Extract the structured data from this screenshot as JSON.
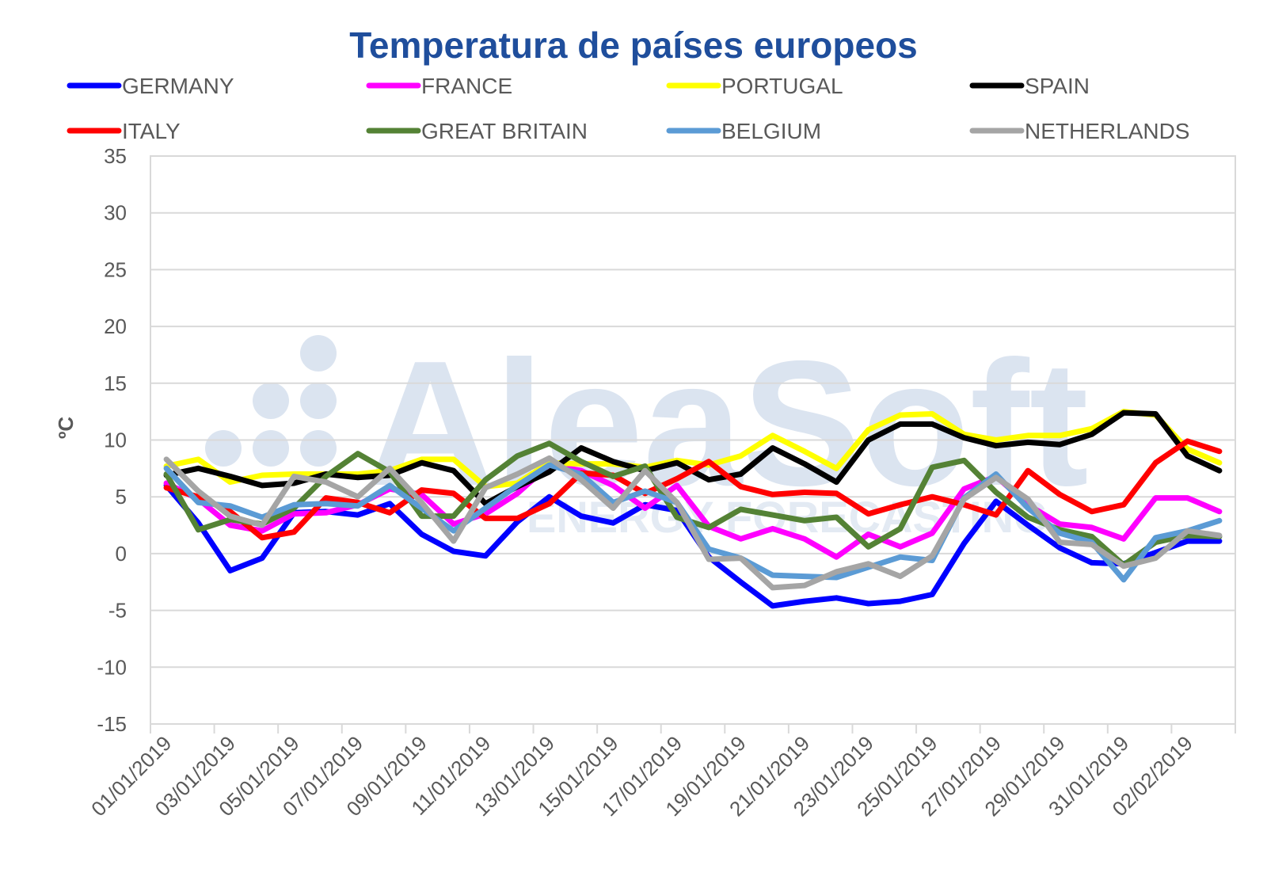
{
  "watermark": {
    "brand": "AleaSoft",
    "tagline": "ENERGY FORECASTING"
  },
  "chart_data": {
    "type": "line",
    "title": "Temperatura de países europeos",
    "ylabel": "ºC",
    "xlabel": "",
    "ylim": [
      -15,
      35
    ],
    "yticks": [
      35,
      30,
      25,
      20,
      15,
      10,
      5,
      0,
      -5,
      -10,
      -15
    ],
    "grid": true,
    "legend": "top",
    "x": [
      "01/01/2019",
      "02/01/2019",
      "03/01/2019",
      "04/01/2019",
      "05/01/2019",
      "06/01/2019",
      "07/01/2019",
      "08/01/2019",
      "09/01/2019",
      "10/01/2019",
      "11/01/2019",
      "12/01/2019",
      "13/01/2019",
      "14/01/2019",
      "15/01/2019",
      "16/01/2019",
      "17/01/2019",
      "18/01/2019",
      "19/01/2019",
      "20/01/2019",
      "21/01/2019",
      "22/01/2019",
      "23/01/2019",
      "24/01/2019",
      "25/01/2019",
      "26/01/2019",
      "27/01/2019",
      "28/01/2019",
      "29/01/2019",
      "30/01/2019",
      "31/01/2019",
      "01/02/2019",
      "02/02/2019",
      "03/02/2019"
    ],
    "xtick_labels": [
      "01/01/2019",
      "03/01/2019",
      "05/01/2019",
      "07/01/2019",
      "09/01/2019",
      "11/01/2019",
      "13/01/2019",
      "15/01/2019",
      "17/01/2019",
      "19/01/2019",
      "21/01/2019",
      "23/01/2019",
      "25/01/2019",
      "27/01/2019",
      "29/01/2019",
      "31/01/2019",
      "02/02/2019"
    ],
    "series": [
      {
        "name": "GERMANY",
        "color": "#0000ff",
        "values": [
          6.0,
          2.7,
          -1.5,
          -0.4,
          3.6,
          3.7,
          3.4,
          4.4,
          1.7,
          0.2,
          -0.2,
          2.8,
          5.0,
          3.3,
          2.7,
          4.3,
          3.8,
          -0.3,
          -2.5,
          -4.6,
          -4.2,
          -3.9,
          -4.4,
          -4.2,
          -3.6,
          0.9,
          4.6,
          2.5,
          0.5,
          -0.8,
          -0.9,
          0.1,
          1.1,
          1.1
        ]
      },
      {
        "name": "FRANCE",
        "color": "#ff00ff",
        "values": [
          6.2,
          4.8,
          2.5,
          2.0,
          3.5,
          3.6,
          4.3,
          5.7,
          5.2,
          2.6,
          3.5,
          5.3,
          7.8,
          7.3,
          6.0,
          4.0,
          6.0,
          2.4,
          1.3,
          2.2,
          1.3,
          -0.3,
          1.7,
          0.6,
          1.8,
          5.7,
          6.8,
          4.3,
          2.6,
          2.3,
          1.3,
          4.9,
          4.9,
          3.7
        ]
      },
      {
        "name": "PORTUGAL",
        "color": "#ffff00",
        "values": [
          7.7,
          8.3,
          6.3,
          6.9,
          7.0,
          7.0,
          7.0,
          7.3,
          8.3,
          8.3,
          5.9,
          6.2,
          8.0,
          7.9,
          7.9,
          7.6,
          8.2,
          7.8,
          8.6,
          10.4,
          9.0,
          7.5,
          10.9,
          12.2,
          12.3,
          10.5,
          10.0,
          10.4,
          10.4,
          11.0,
          12.5,
          12.2,
          9.2,
          8.0
        ]
      },
      {
        "name": "SPAIN",
        "color": "#000000",
        "values": [
          6.9,
          7.5,
          6.8,
          6.0,
          6.2,
          7.0,
          6.7,
          6.9,
          8.0,
          7.3,
          4.4,
          5.9,
          7.2,
          9.3,
          8.1,
          7.3,
          8.0,
          6.5,
          7.0,
          9.3,
          7.9,
          6.3,
          10.0,
          11.4,
          11.4,
          10.2,
          9.5,
          9.8,
          9.6,
          10.5,
          12.4,
          12.3,
          8.6,
          7.3
        ]
      },
      {
        "name": "ITALY",
        "color": "#ff0000",
        "values": [
          5.8,
          5.0,
          3.7,
          1.4,
          1.9,
          4.9,
          4.5,
          3.6,
          5.6,
          5.3,
          3.1,
          3.1,
          4.4,
          7.1,
          6.9,
          5.3,
          6.6,
          8.1,
          5.9,
          5.2,
          5.4,
          5.3,
          3.5,
          4.3,
          5.0,
          4.3,
          3.4,
          7.3,
          5.2,
          3.7,
          4.3,
          8.0,
          9.9,
          9.0
        ]
      },
      {
        "name": "GREAT BRITAIN",
        "color": "#548235",
        "values": [
          7.0,
          2.1,
          3.0,
          2.6,
          4.0,
          6.8,
          8.8,
          7.2,
          3.3,
          3.3,
          6.5,
          8.6,
          9.7,
          8.1,
          6.8,
          7.7,
          3.2,
          2.3,
          3.9,
          3.4,
          2.9,
          3.2,
          0.6,
          2.2,
          7.6,
          8.2,
          5.4,
          3.2,
          2.1,
          1.5,
          -1.0,
          1.0,
          1.6,
          1.5
        ]
      },
      {
        "name": "BELGIUM",
        "color": "#5b9bd5",
        "values": [
          7.5,
          4.5,
          4.2,
          3.2,
          4.3,
          4.4,
          4.2,
          6.0,
          4.0,
          2.0,
          4.0,
          6.0,
          7.8,
          7.0,
          4.5,
          5.5,
          4.5,
          0.4,
          -0.4,
          -1.9,
          -2.0,
          -2.1,
          -1.2,
          -0.3,
          -0.6,
          4.9,
          7.0,
          4.0,
          1.8,
          1.0,
          -2.3,
          1.4,
          2.0,
          2.9
        ]
      },
      {
        "name": "NETHERLANDS",
        "color": "#a5a5a5",
        "values": [
          8.3,
          5.5,
          3.3,
          2.5,
          6.8,
          6.3,
          5.0,
          7.5,
          4.5,
          1.1,
          5.8,
          7.0,
          8.4,
          6.5,
          4.0,
          7.3,
          4.5,
          -0.5,
          -0.4,
          -3.0,
          -2.8,
          -1.6,
          -0.9,
          -2.0,
          -0.2,
          4.8,
          6.7,
          4.8,
          1.0,
          0.8,
          -1.1,
          -0.4,
          2.0,
          1.6
        ]
      }
    ]
  }
}
